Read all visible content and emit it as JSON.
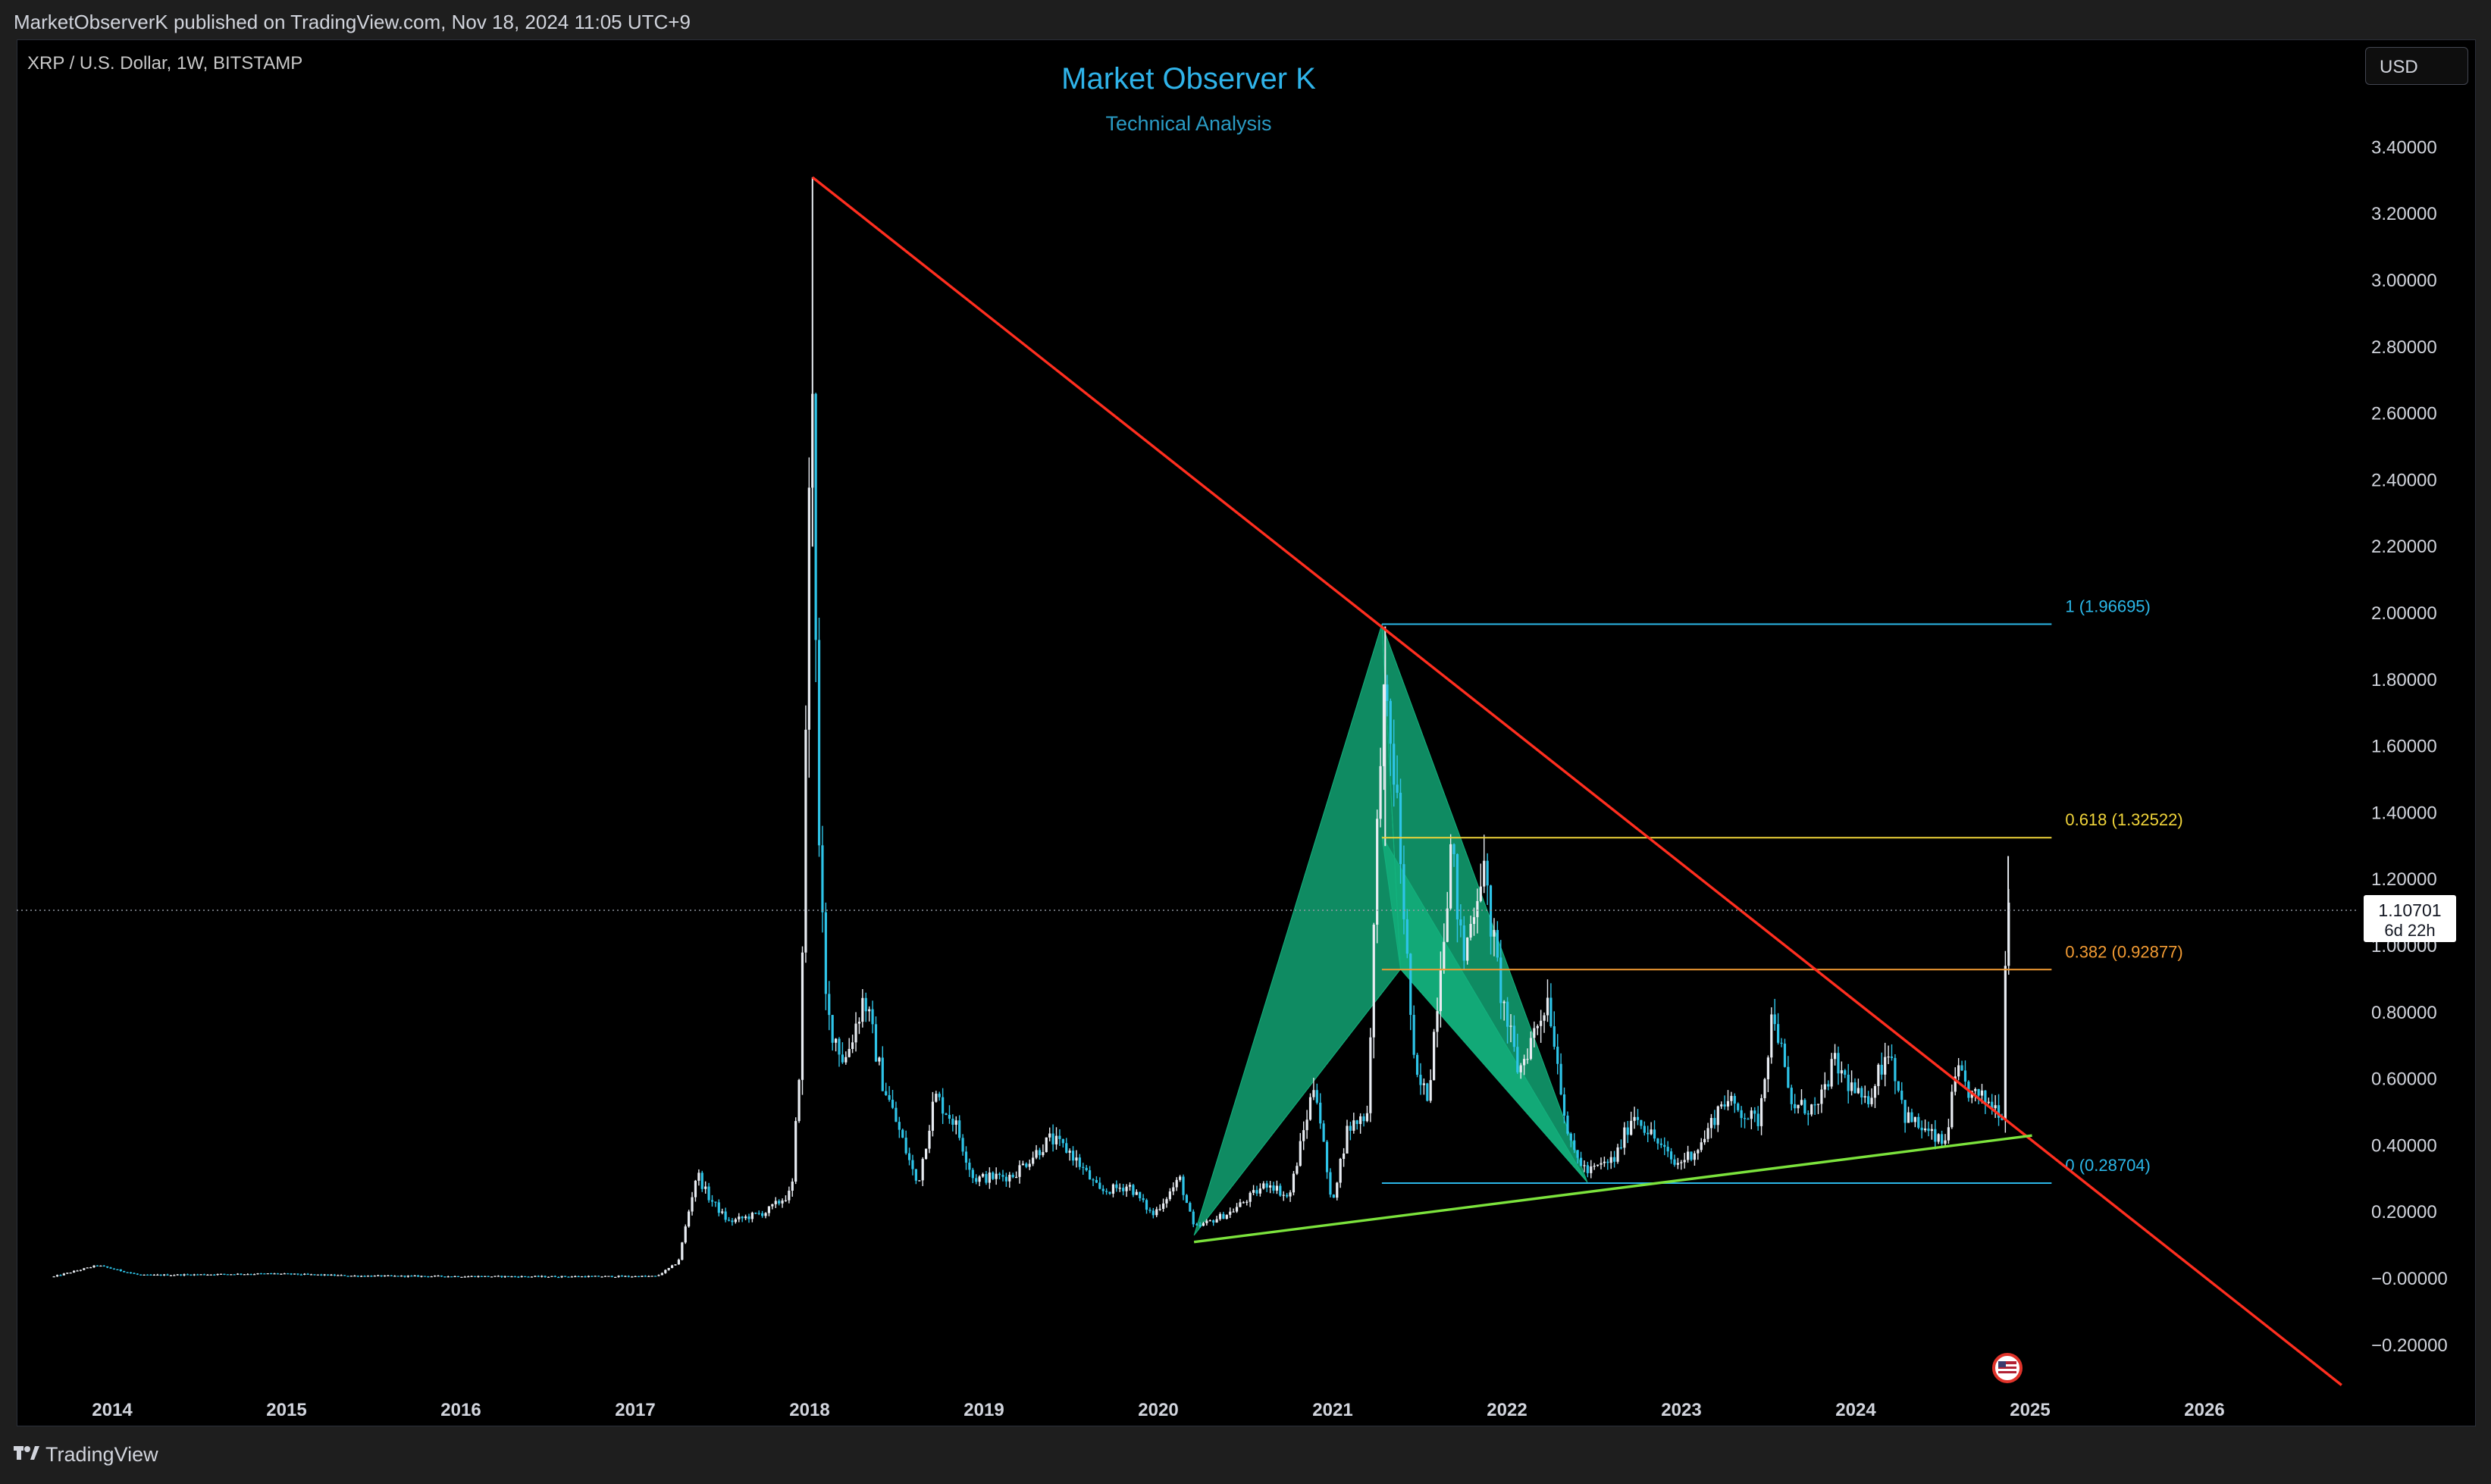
{
  "header": {
    "published": "MarketObserverK published on TradingView.com, Nov 18, 2024 11:05 UTC+9"
  },
  "symbol": "XRP / U.S. Dollar, 1W, BITSTAMP",
  "title": "Market Observer K",
  "subtitle": "Technical Analysis",
  "currency_button": "USD",
  "footer": {
    "logo_text": "TradingView",
    "logo_icon": "tradingview-logo-icon",
    "flag_icon": "us-flag-icon"
  },
  "colors": {
    "candle_up": "#e8ecf2",
    "candle_down": "#2ec4e8",
    "downtrend": "#ff2e1f",
    "uptrend": "#7ce33c",
    "pattern_fill": "#13b27e",
    "fib_1": "#2bb7e8",
    "fib_0618": "#f0d43a",
    "fib_0382": "#f29b33",
    "fib_0": "#2bb7e8"
  },
  "chart_data": {
    "type": "candlestick",
    "interval": "1W",
    "x_axis": {
      "type": "date",
      "range": [
        "2013-08",
        "2026-12"
      ],
      "tick_labels": [
        "2014",
        "2015",
        "2016",
        "2017",
        "2018",
        "2019",
        "2020",
        "2021",
        "2022",
        "2023",
        "2024",
        "2025",
        "2026"
      ]
    },
    "y_axis": {
      "range": [
        -0.3,
        3.5
      ],
      "side": "right",
      "tick_labels": [
        "3.40000",
        "3.20000",
        "3.00000",
        "2.80000",
        "2.60000",
        "2.40000",
        "2.20000",
        "2.00000",
        "1.80000",
        "1.60000",
        "1.40000",
        "1.20000",
        "1.00000",
        "0.80000",
        "0.60000",
        "0.40000",
        "0.20000",
        "−0.00000",
        "−0.20000"
      ]
    },
    "grid": false,
    "last_price": {
      "value": 1.10701,
      "label": "1.10701",
      "countdown": "6d 22h"
    },
    "price_anchors": [
      [
        "2013-09-01",
        0.006
      ],
      [
        "2013-12-01",
        0.04
      ],
      [
        "2014-03-01",
        0.01
      ],
      [
        "2014-12-01",
        0.015
      ],
      [
        "2015-06-01",
        0.008
      ],
      [
        "2016-06-01",
        0.006
      ],
      [
        "2017-02-15",
        0.007
      ],
      [
        "2017-04-01",
        0.05
      ],
      [
        "2017-05-10",
        0.32
      ],
      [
        "2017-06-01",
        0.25
      ],
      [
        "2017-07-15",
        0.17
      ],
      [
        "2017-10-01",
        0.2
      ],
      [
        "2017-11-25",
        0.26
      ],
      [
        "2017-12-15",
        0.75
      ],
      [
        "2017-12-29",
        2.2
      ],
      [
        "2018-01-07",
        2.75
      ],
      [
        "2018-01-20",
        1.3
      ],
      [
        "2018-02-05",
        0.8
      ],
      [
        "2018-03-15",
        0.65
      ],
      [
        "2018-04-25",
        0.85
      ],
      [
        "2018-06-01",
        0.6
      ],
      [
        "2018-08-15",
        0.28
      ],
      [
        "2018-09-20",
        0.55
      ],
      [
        "2018-11-01",
        0.47
      ],
      [
        "2018-12-10",
        0.3
      ],
      [
        "2019-03-01",
        0.31
      ],
      [
        "2019-05-20",
        0.42
      ],
      [
        "2019-07-01",
        0.38
      ],
      [
        "2019-09-01",
        0.26
      ],
      [
        "2019-11-01",
        0.28
      ],
      [
        "2019-12-20",
        0.19
      ],
      [
        "2020-02-15",
        0.3
      ],
      [
        "2020-03-16",
        0.15
      ],
      [
        "2020-06-01",
        0.2
      ],
      [
        "2020-08-20",
        0.29
      ],
      [
        "2020-10-01",
        0.24
      ],
      [
        "2020-11-25",
        0.6
      ],
      [
        "2020-12-29",
        0.22
      ],
      [
        "2021-02-01",
        0.45
      ],
      [
        "2021-03-15",
        0.5
      ],
      [
        "2021-04-14",
        1.75
      ],
      [
        "2021-05-12",
        1.5
      ],
      [
        "2021-06-22",
        0.6
      ],
      [
        "2021-07-20",
        0.55
      ],
      [
        "2021-09-06",
        1.3
      ],
      [
        "2021-10-01",
        0.95
      ],
      [
        "2021-11-10",
        1.25
      ],
      [
        "2021-12-20",
        0.85
      ],
      [
        "2022-01-25",
        0.62
      ],
      [
        "2022-03-28",
        0.85
      ],
      [
        "2022-05-12",
        0.4
      ],
      [
        "2022-06-18",
        0.32
      ],
      [
        "2022-08-15",
        0.36
      ],
      [
        "2022-09-23",
        0.5
      ],
      [
        "2022-12-20",
        0.34
      ],
      [
        "2023-02-10",
        0.4
      ],
      [
        "2023-03-29",
        0.54
      ],
      [
        "2023-06-10",
        0.47
      ],
      [
        "2023-07-13",
        0.82
      ],
      [
        "2023-08-17",
        0.52
      ],
      [
        "2023-10-15",
        0.51
      ],
      [
        "2023-11-15",
        0.65
      ],
      [
        "2024-01-20",
        0.52
      ],
      [
        "2024-03-11",
        0.7
      ],
      [
        "2024-04-13",
        0.49
      ],
      [
        "2024-07-05",
        0.4
      ],
      [
        "2024-07-31",
        0.62
      ],
      [
        "2024-09-01",
        0.55
      ],
      [
        "2024-10-10",
        0.53
      ],
      [
        "2024-11-03",
        0.5
      ],
      [
        "2024-11-11",
        1.0
      ],
      [
        "2024-11-16",
        1.25
      ],
      [
        "2024-11-18",
        1.107
      ]
    ],
    "trendlines": [
      {
        "kind": "downtrend",
        "from": [
          "2018-01-07",
          3.31
        ],
        "to": [
          "2026-10-15",
          -0.32
        ]
      },
      {
        "kind": "uptrend",
        "from": [
          "2020-03-16",
          0.11
        ],
        "to": [
          "2025-01-05",
          0.43
        ]
      }
    ],
    "pattern": {
      "kind": "harmonic",
      "points": [
        [
          "2020-03-16",
          0.13
        ],
        [
          "2021-04-14",
          1.96695
        ],
        [
          "2021-05-23",
          0.93
        ],
        [
          "2022-06-18",
          0.29
        ],
        [
          "2021-04-14",
          1.33
        ]
      ]
    },
    "fibonacci": {
      "start": "2021-04-14",
      "end": "2025-02-15",
      "levels": [
        {
          "ratio": "1",
          "price": 1.96695,
          "label": "1 (1.96695)"
        },
        {
          "ratio": "0.618",
          "price": 1.32522,
          "label": "0.618 (1.32522)"
        },
        {
          "ratio": "0.382",
          "price": 0.92877,
          "label": "0.382 (0.92877)"
        },
        {
          "ratio": "0",
          "price": 0.28704,
          "label": "0 (0.28704)"
        }
      ]
    }
  }
}
